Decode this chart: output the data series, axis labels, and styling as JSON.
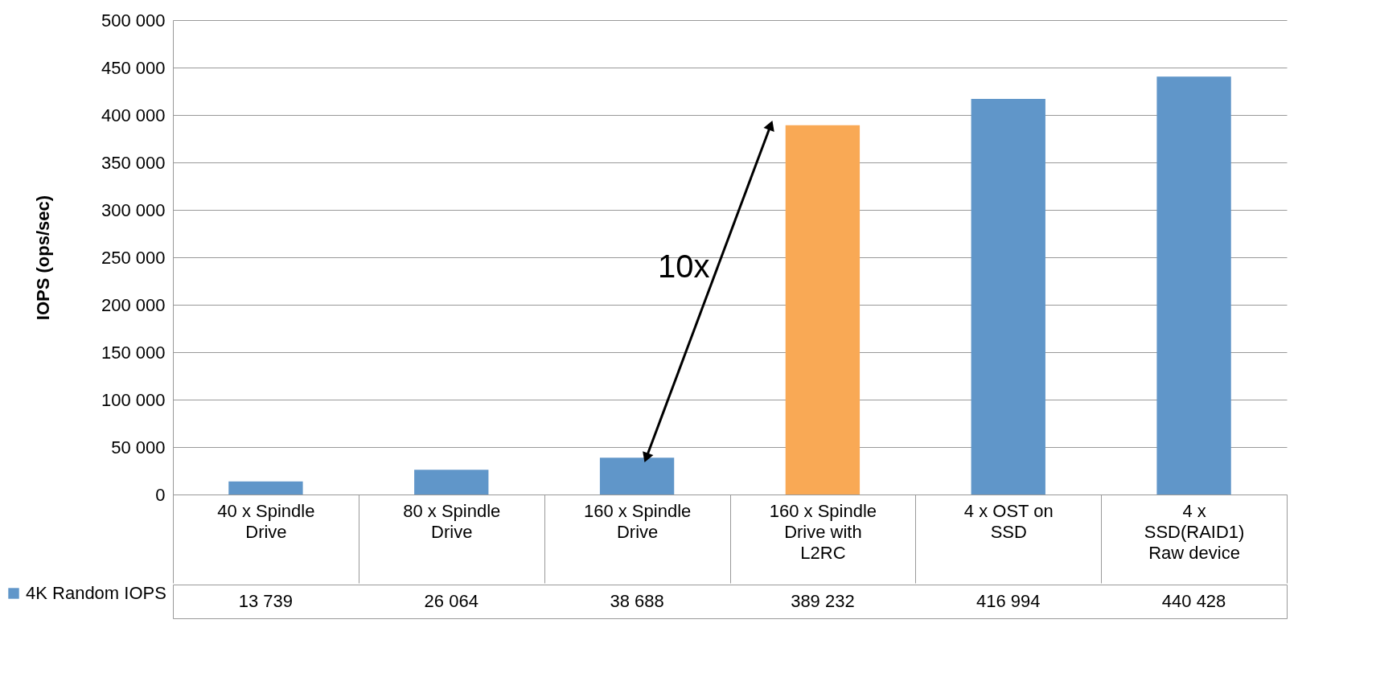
{
  "chart_data": {
    "type": "bar",
    "ylabel": "IOPS (ops/sec)",
    "categories": [
      "40 x Spindle Drive",
      "80 x Spindle Drive",
      "160 x Spindle Drive",
      "160 x Spindle Drive with L2RC",
      "4 x OST on SSD",
      "4 x SSD(RAID1) Raw device"
    ],
    "series": [
      {
        "name": "4K Random IOPS",
        "color": "#6096c9",
        "colors": [
          "#6096c9",
          "#6096c9",
          "#6096c9",
          "#f9a955",
          "#6096c9",
          "#6096c9"
        ],
        "values": [
          13739,
          26064,
          38688,
          389232,
          416994,
          440428
        ]
      }
    ],
    "ylim": [
      0,
      500000
    ],
    "yticks": [
      0,
      {
        "value": 50000,
        "label": "50 000"
      },
      {
        "value": 100000,
        "label": "100 000"
      },
      {
        "value": 150000,
        "label": "150 000"
      },
      {
        "value": 200000,
        "label": "200 000"
      },
      {
        "value": 250000,
        "label": "250 000"
      },
      {
        "value": 300000,
        "label": "300 000"
      },
      {
        "value": 350000,
        "label": "350 000"
      },
      {
        "value": 400000,
        "label": "400 000"
      },
      {
        "value": 450000,
        "label": "450 000"
      },
      {
        "value": 500000,
        "label": "500 000"
      }
    ],
    "grid": "y",
    "data_labels": true,
    "legend": "bottom left",
    "annotations": [
      "10x"
    ]
  }
}
